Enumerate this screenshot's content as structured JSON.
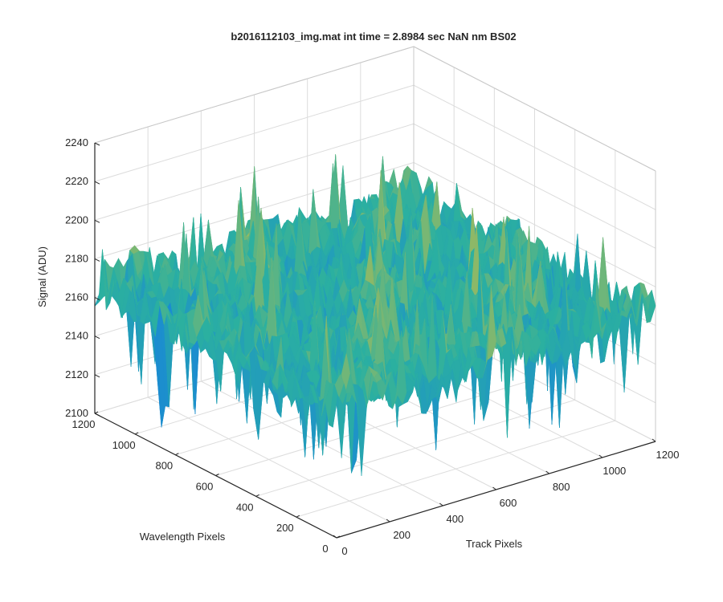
{
  "chart_data": {
    "type": "surface",
    "title": "b2016112103_img.mat int time = 2.8984 sec  NaN nm BS02",
    "xlabel": "Track Pixels",
    "ylabel": "Wavelength Pixels",
    "zlabel": "Signal (ADU)",
    "xlim": [
      0,
      1200
    ],
    "ylim": [
      0,
      1200
    ],
    "zlim": [
      2100,
      2240
    ],
    "xticks": [
      0,
      200,
      400,
      600,
      800,
      1000,
      1200
    ],
    "yticks": [
      0,
      200,
      400,
      600,
      800,
      1000,
      1200
    ],
    "zticks": [
      2100,
      2120,
      2140,
      2160,
      2180,
      2200,
      2220,
      2240
    ],
    "grid": true,
    "colormap": "parula",
    "surface_summary": {
      "mean_signal": 2165,
      "min_signal": 2105,
      "max_signal": 2230,
      "description": "Noisy sensor surface, flat ~2160-2175 ADU with spikes"
    }
  },
  "colors": {
    "axis": "#262626",
    "grid": "#dcdcdc",
    "surface_low": "#1a8ad4",
    "surface_mid": "#2bb0a0",
    "surface_high": "#e8c033"
  }
}
